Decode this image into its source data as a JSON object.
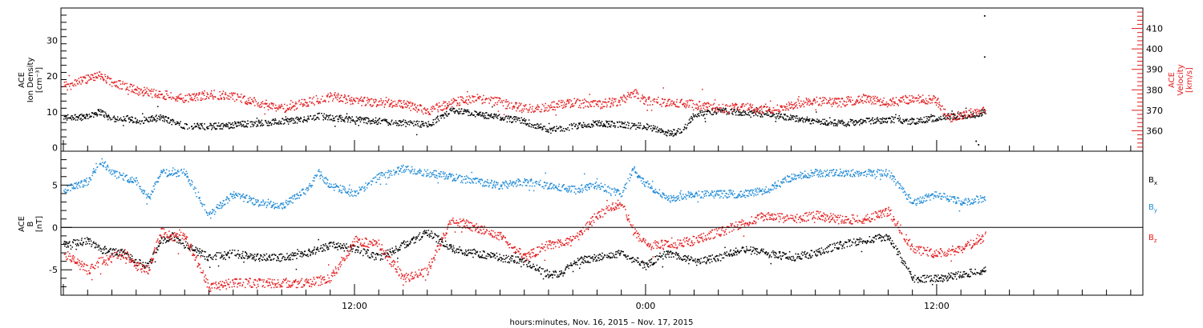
{
  "chart_data": [
    {
      "type": "scatter",
      "ylabel_lines": [
        "ACE",
        "Ion Density",
        "[cm⁻³]"
      ],
      "y2label_lines": [
        "ACE",
        "Velocity",
        "[km/s]"
      ],
      "xlim_hours": [
        -4.1,
        40.5
      ],
      "ylim": [
        -1,
        39
      ],
      "y2lim": [
        350,
        420
      ],
      "yticks": [
        0,
        10,
        20,
        30
      ],
      "y2ticks": [
        360,
        370,
        380,
        390,
        400,
        410
      ],
      "series": [
        {
          "color": "#000000",
          "axis": "left",
          "anchors": [
            [
              -4.0,
              8.5
            ],
            [
              -3.0,
              9.0
            ],
            [
              -2.5,
              10.2
            ],
            [
              -2.0,
              8.0
            ],
            [
              -1.5,
              8.5
            ],
            [
              -1.0,
              7.5
            ],
            [
              -0.5,
              8.0
            ],
            [
              0.0,
              8.5
            ],
            [
              1.0,
              6.2
            ],
            [
              2.0,
              6.0
            ],
            [
              3.0,
              6.5
            ],
            [
              4.0,
              7.0
            ],
            [
              5.0,
              7.5
            ],
            [
              6.0,
              8.0
            ],
            [
              6.5,
              9.0
            ],
            [
              7.0,
              8.5
            ],
            [
              8.0,
              8.0
            ],
            [
              9.0,
              7.5
            ],
            [
              10.0,
              7.0
            ],
            [
              11.0,
              6.5
            ],
            [
              12.0,
              10.5
            ],
            [
              13.0,
              9.5
            ],
            [
              14.0,
              8.5
            ],
            [
              15.0,
              7.5
            ],
            [
              16.0,
              5.0
            ],
            [
              17.0,
              6.0
            ],
            [
              18.0,
              7.0
            ],
            [
              19.0,
              6.5
            ],
            [
              20.0,
              6.0
            ],
            [
              21.0,
              4.0
            ],
            [
              21.5,
              5.0
            ],
            [
              22.0,
              9.5
            ],
            [
              23.0,
              10.5
            ],
            [
              24.0,
              10.0
            ],
            [
              25.0,
              9.5
            ],
            [
              26.0,
              8.5
            ],
            [
              27.0,
              7.5
            ],
            [
              28.0,
              7.0
            ],
            [
              29.0,
              7.5
            ],
            [
              30.0,
              8.0
            ],
            [
              31.0,
              7.5
            ],
            [
              32.0,
              8.5
            ],
            [
              33.0,
              9.0
            ],
            [
              34.0,
              10.0
            ]
          ]
        },
        {
          "color": "#e41a1c",
          "axis": "right",
          "anchors": [
            [
              -4.0,
              382
            ],
            [
              -3.5,
              384
            ],
            [
              -2.5,
              387
            ],
            [
              -2.0,
              384
            ],
            [
              -1.0,
              380
            ],
            [
              0.0,
              378
            ],
            [
              1.0,
              376
            ],
            [
              2.0,
              378
            ],
            [
              3.0,
              377
            ],
            [
              4.0,
              374
            ],
            [
              5.0,
              371
            ],
            [
              6.0,
              374
            ],
            [
              7.0,
              377
            ],
            [
              8.0,
              375
            ],
            [
              9.0,
              374
            ],
            [
              10.0,
              373
            ],
            [
              11.0,
              370
            ],
            [
              12.0,
              374
            ],
            [
              13.0,
              376
            ],
            [
              14.0,
              374
            ],
            [
              15.0,
              371
            ],
            [
              16.0,
              372
            ],
            [
              17.0,
              374
            ],
            [
              18.0,
              373
            ],
            [
              19.0,
              375
            ],
            [
              19.5,
              379
            ],
            [
              20.0,
              375
            ],
            [
              21.0,
              374
            ],
            [
              22.0,
              373
            ],
            [
              23.0,
              371
            ],
            [
              24.0,
              372
            ],
            [
              25.0,
              370
            ],
            [
              26.0,
              373
            ],
            [
              27.0,
              375
            ],
            [
              28.0,
              374
            ],
            [
              29.0,
              376
            ],
            [
              30.0,
              374
            ],
            [
              31.0,
              376
            ],
            [
              32.0,
              375
            ],
            [
              32.5,
              366
            ],
            [
              33.0,
              368
            ],
            [
              34.0,
              371
            ]
          ]
        }
      ]
    },
    {
      "type": "scatter",
      "ylabel_lines": [
        "ACE",
        "B",
        "[nT]"
      ],
      "xlim_hours": [
        -4.1,
        40.5
      ],
      "ylim": [
        -8,
        9
      ],
      "yticks": [
        -5,
        0,
        5
      ],
      "xticks": [
        {
          "hour": 8,
          "label": "12:00"
        },
        {
          "hour": 20,
          "label": "0:00"
        },
        {
          "hour": 32,
          "label": "12:00"
        }
      ],
      "xtitle": "hours:minutes, Nov. 16, 2015 – Nov. 17, 2015",
      "series": [
        {
          "name": "B",
          "name_sub": "x",
          "color": "#000000",
          "anchors": [
            [
              -4.0,
              -2.0
            ],
            [
              -3.0,
              -1.5
            ],
            [
              -2.5,
              -2.5
            ],
            [
              -1.5,
              -3.0
            ],
            [
              -1.0,
              -4.0
            ],
            [
              -0.5,
              -4.5
            ],
            [
              0.0,
              -1.5
            ],
            [
              0.5,
              -1.0
            ],
            [
              1.0,
              -2.0
            ],
            [
              2.0,
              -3.5
            ],
            [
              3.0,
              -3.0
            ],
            [
              4.0,
              -3.5
            ],
            [
              5.0,
              -3.5
            ],
            [
              6.0,
              -3.0
            ],
            [
              7.0,
              -2.0
            ],
            [
              8.0,
              -2.5
            ],
            [
              9.0,
              -3.5
            ],
            [
              10.0,
              -2.0
            ],
            [
              11.0,
              -0.5
            ],
            [
              12.0,
              -2.5
            ],
            [
              13.0,
              -3.0
            ],
            [
              14.0,
              -3.5
            ],
            [
              15.0,
              -4.0
            ],
            [
              16.0,
              -5.5
            ],
            [
              16.5,
              -5.5
            ],
            [
              17.0,
              -4.0
            ],
            [
              18.0,
              -3.5
            ],
            [
              19.0,
              -3.0
            ],
            [
              20.0,
              -4.5
            ],
            [
              20.5,
              -3.5
            ],
            [
              21.0,
              -3.0
            ],
            [
              22.0,
              -4.0
            ],
            [
              23.0,
              -3.5
            ],
            [
              24.0,
              -2.5
            ],
            [
              25.0,
              -3.0
            ],
            [
              26.0,
              -3.5
            ],
            [
              27.0,
              -3.0
            ],
            [
              28.0,
              -2.0
            ],
            [
              29.0,
              -1.5
            ],
            [
              30.0,
              -1.0
            ],
            [
              31.0,
              -6.0
            ],
            [
              32.0,
              -6.0
            ],
            [
              33.0,
              -5.5
            ],
            [
              34.0,
              -5.0
            ]
          ]
        },
        {
          "name": "B",
          "name_sub": "y",
          "color": "#1f8ad6",
          "anchors": [
            [
              -4.0,
              4.5
            ],
            [
              -3.0,
              5.5
            ],
            [
              -2.5,
              8.0
            ],
            [
              -2.0,
              6.5
            ],
            [
              -1.0,
              5.5
            ],
            [
              -0.5,
              3.5
            ],
            [
              0.0,
              6.5
            ],
            [
              0.5,
              6.5
            ],
            [
              1.0,
              6.5
            ],
            [
              2.0,
              1.5
            ],
            [
              3.0,
              4.0
            ],
            [
              4.0,
              3.0
            ],
            [
              5.0,
              2.5
            ],
            [
              6.0,
              4.5
            ],
            [
              6.5,
              6.5
            ],
            [
              7.0,
              5.0
            ],
            [
              8.0,
              4.0
            ],
            [
              9.0,
              6.0
            ],
            [
              10.0,
              7.0
            ],
            [
              11.0,
              6.5
            ],
            [
              12.0,
              6.0
            ],
            [
              13.0,
              5.5
            ],
            [
              14.0,
              5.0
            ],
            [
              15.0,
              5.5
            ],
            [
              16.0,
              5.0
            ],
            [
              17.0,
              4.5
            ],
            [
              18.0,
              5.0
            ],
            [
              19.0,
              4.0
            ],
            [
              19.5,
              7.0
            ],
            [
              20.0,
              5.0
            ],
            [
              21.0,
              3.5
            ],
            [
              22.0,
              4.0
            ],
            [
              23.0,
              4.0
            ],
            [
              24.0,
              4.0
            ],
            [
              25.0,
              4.5
            ],
            [
              26.0,
              6.0
            ],
            [
              27.0,
              6.5
            ],
            [
              28.0,
              6.5
            ],
            [
              29.0,
              6.5
            ],
            [
              30.0,
              6.5
            ],
            [
              31.0,
              3.0
            ],
            [
              32.0,
              4.0
            ],
            [
              33.0,
              3.0
            ],
            [
              34.0,
              3.5
            ]
          ]
        },
        {
          "name": "B",
          "name_sub": "z",
          "color": "#e41a1c",
          "anchors": [
            [
              -4.0,
              -3.0
            ],
            [
              -3.0,
              -5.0
            ],
            [
              -2.5,
              -4.0
            ],
            [
              -1.5,
              -3.0
            ],
            [
              -1.0,
              -4.5
            ],
            [
              -0.5,
              -5.0
            ],
            [
              0.0,
              -0.5
            ],
            [
              0.5,
              -1.0
            ],
            [
              1.0,
              -1.0
            ],
            [
              2.0,
              -7.0
            ],
            [
              3.0,
              -6.5
            ],
            [
              4.0,
              -6.5
            ],
            [
              5.0,
              -6.5
            ],
            [
              6.0,
              -6.5
            ],
            [
              7.0,
              -6.0
            ],
            [
              8.0,
              -1.5
            ],
            [
              9.0,
              -2.0
            ],
            [
              10.0,
              -6.0
            ],
            [
              11.0,
              -5.0
            ],
            [
              12.0,
              1.0
            ],
            [
              13.0,
              0.0
            ],
            [
              14.0,
              -1.0
            ],
            [
              15.0,
              -3.5
            ],
            [
              16.0,
              -2.0
            ],
            [
              17.0,
              -1.5
            ],
            [
              18.0,
              1.5
            ],
            [
              19.0,
              3.0
            ],
            [
              19.5,
              -0.5
            ],
            [
              20.0,
              -2.0
            ],
            [
              21.0,
              -2.0
            ],
            [
              22.0,
              -1.5
            ],
            [
              23.0,
              -0.5
            ],
            [
              24.0,
              0.5
            ],
            [
              25.0,
              1.5
            ],
            [
              26.0,
              1.0
            ],
            [
              27.0,
              1.5
            ],
            [
              28.0,
              1.0
            ],
            [
              29.0,
              1.0
            ],
            [
              30.0,
              2.0
            ],
            [
              31.0,
              -2.5
            ],
            [
              32.0,
              -3.0
            ],
            [
              33.0,
              -2.5
            ],
            [
              34.0,
              -1.0
            ]
          ]
        }
      ]
    }
  ]
}
